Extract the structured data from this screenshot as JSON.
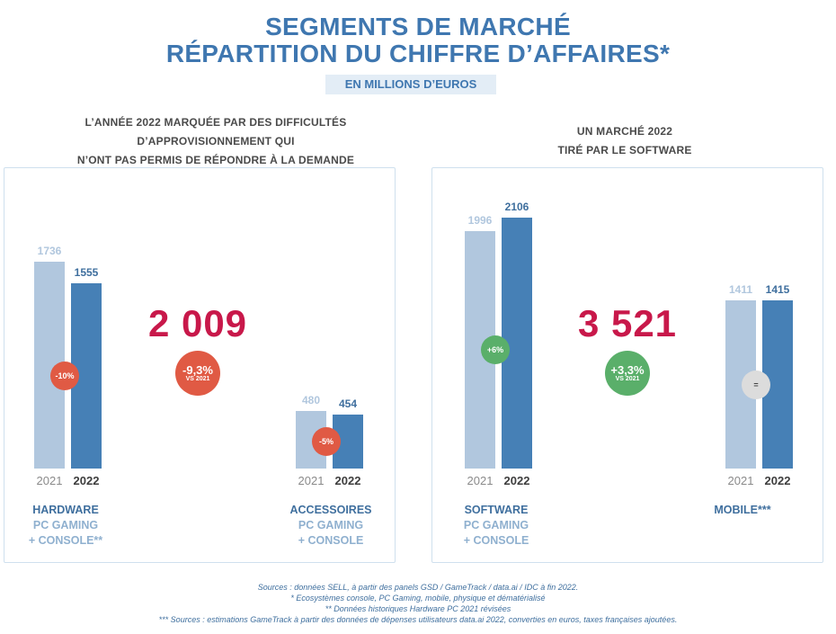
{
  "header": {
    "title_line1": "SEGMENTS DE MARCHÉ",
    "title_line2": "RÉPARTITION DU CHIFFRE D’AFFAIRES*",
    "subtitle": "EN MILLIONS D’EUROS"
  },
  "left_panel": {
    "caption_lines": [
      "L’ANNÉE 2022 MARQUÉE PAR DES DIFFICULTÉS",
      "D’APPROVISIONNEMENT QUI",
      "N’ONT PAS PERMIS DE RÉPONDRE À LA DEMANDE"
    ],
    "total": "2 009",
    "total_change": "-9,3%",
    "total_change_note": "VS 2021"
  },
  "right_panel": {
    "caption_lines": [
      "UN MARCHÉ 2022",
      "TIRÉ PAR LE SOFTWARE"
    ],
    "total": "3 521",
    "total_change": "+3,3%",
    "total_change_note": "VS 2021"
  },
  "chart_data": {
    "type": "bar",
    "categories": [
      "2021",
      "2022"
    ],
    "groups": [
      {
        "label_lines": [
          "HARDWARE",
          "PC GAMING",
          "+ CONSOLE**"
        ],
        "values": [
          1736,
          1555
        ],
        "value_labels": [
          "1736",
          "1555"
        ],
        "change": "-10%",
        "change_color": "#e05a44"
      },
      {
        "label_lines": [
          "ACCESSOIRES",
          "PC GAMING",
          "+ CONSOLE"
        ],
        "values": [
          480,
          454
        ],
        "value_labels": [
          "480",
          "454"
        ],
        "change": "-5%",
        "change_color": "#e05a44"
      },
      {
        "label_lines": [
          "SOFTWARE",
          "PC GAMING",
          "+ CONSOLE"
        ],
        "values": [
          1996,
          2106
        ],
        "value_labels": [
          "1996",
          "2106"
        ],
        "change": "+6%",
        "change_color": "#5aaf6a"
      },
      {
        "label_lines": [
          "MOBILE***"
        ],
        "values": [
          1411,
          1415
        ],
        "value_labels": [
          "1411",
          "1415"
        ],
        "change": "=",
        "change_color": "#dcdcdc"
      }
    ],
    "colors": {
      "2021": "#b1c7de",
      "2022": "#4680b6"
    }
  },
  "footnotes": [
    "Sources : données SELL, à partir des panels GSD / GameTrack / data.ai / IDC à fin 2022.",
    "* Ecosystèmes console, PC Gaming, mobile, physique et dématérialisé",
    "** Données historiques Hardware PC 2021 révisées",
    "*** Sources : estimations GameTrack à partir des données de dépenses utilisateurs data.ai 2022, converties en euros, taxes françaises ajoutées."
  ]
}
